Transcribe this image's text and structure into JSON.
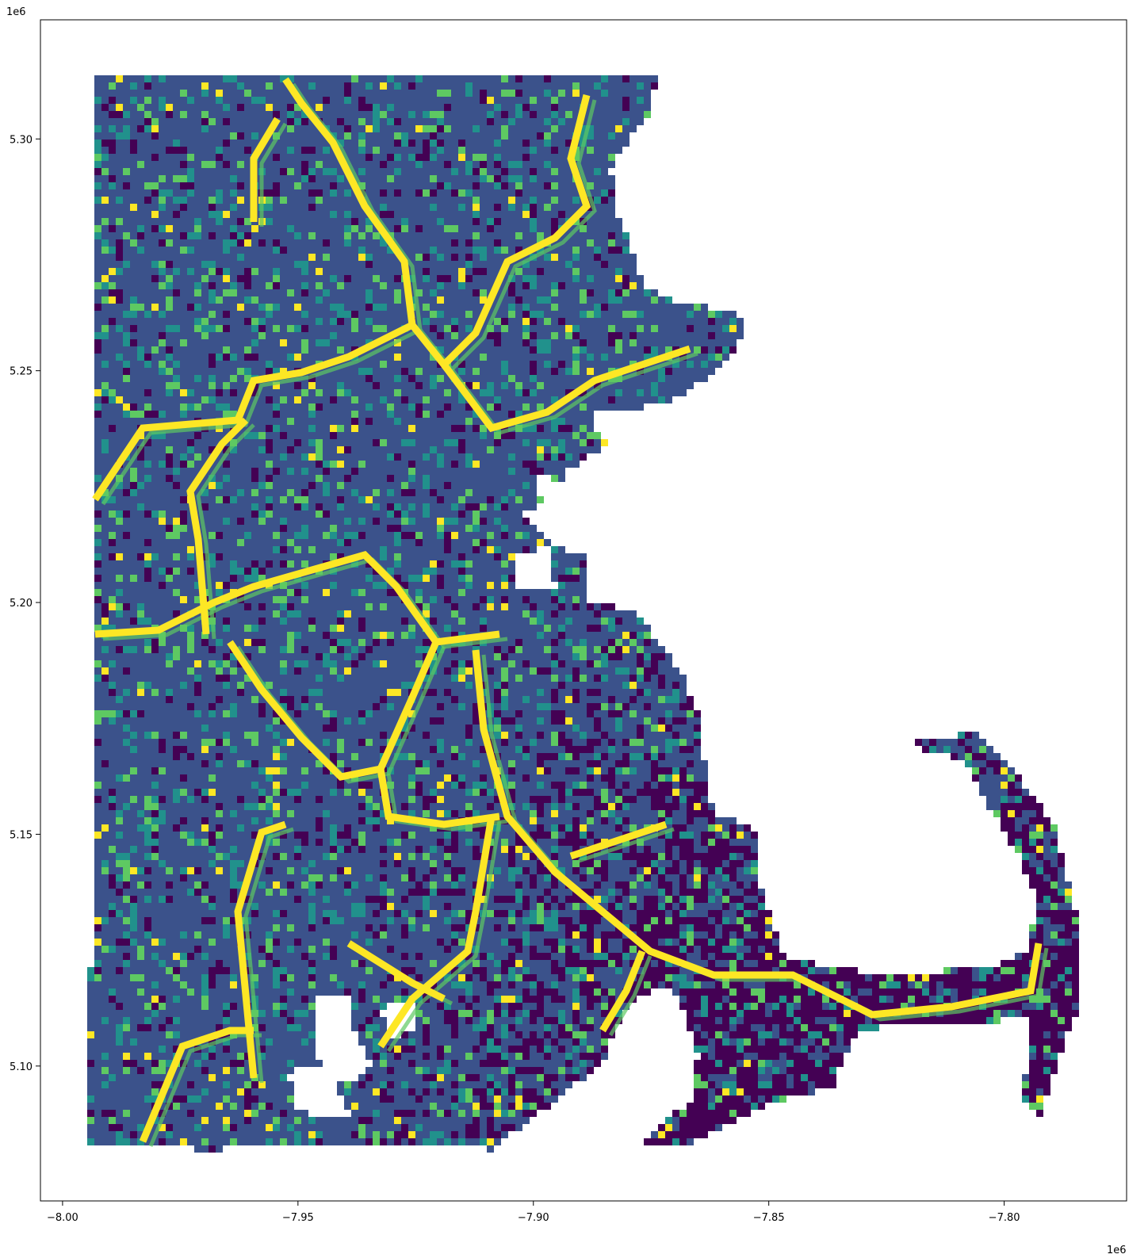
{
  "chart_data": {
    "type": "heatmap",
    "description_kind": "gridded choropleth map (viridis colormap)",
    "colormap": [
      "#440154",
      "#3b528b",
      "#21918c",
      "#5ec962",
      "#fde725"
    ],
    "axes": {
      "x_offset_label": "1e6",
      "y_offset_label": "1e6",
      "x_ticks": [
        {
          "value": -8.0,
          "label": "−8.00"
        },
        {
          "value": -7.95,
          "label": "−7.95"
        },
        {
          "value": -7.9,
          "label": "−7.90"
        },
        {
          "value": -7.85,
          "label": "−7.85"
        },
        {
          "value": -7.8,
          "label": "−7.80"
        }
      ],
      "y_ticks": [
        {
          "value": 5.1,
          "label": "5.10"
        },
        {
          "value": 5.15,
          "label": "5.15"
        },
        {
          "value": 5.2,
          "label": "5.20"
        },
        {
          "value": 5.25,
          "label": "5.25"
        },
        {
          "value": 5.3,
          "label": "5.30"
        }
      ],
      "xlim": [
        -8.0047,
        -7.774
      ],
      "ylim": [
        5.0709,
        5.3257
      ]
    },
    "grid": false,
    "legend": "none"
  }
}
